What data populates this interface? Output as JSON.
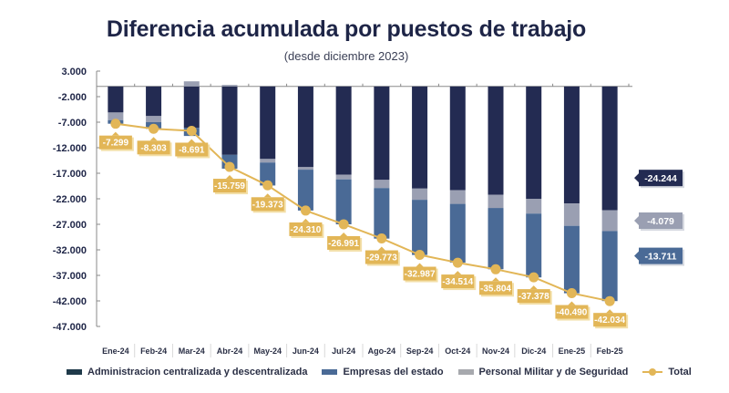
{
  "chart_data": {
    "type": "bar",
    "subtype": "stacked-bar-with-line",
    "title": "Diferencia acumulada por puestos de trabajo",
    "subtitle": "(desde diciembre 2023)",
    "xlabel": "",
    "ylabel": "",
    "ylim": [
      -47000,
      3000
    ],
    "yticks": [
      3000,
      -2000,
      -7000,
      -12000,
      -17000,
      -22000,
      -27000,
      -32000,
      -37000,
      -42000,
      -47000
    ],
    "ytick_labels": [
      "3.000",
      "-2.000",
      "-7.000",
      "-12.000",
      "-17.000",
      "-22.000",
      "-27.000",
      "-32.000",
      "-37.000",
      "-42.000",
      "-47.000"
    ],
    "grid": false,
    "legend_position": "bottom",
    "categories": [
      "Ene-24",
      "Feb-24",
      "Mar-24",
      "Abr-24",
      "May-24",
      "Jun-24",
      "Jul-24",
      "Ago-24",
      "Sep-24",
      "Oct-24",
      "Nov-24",
      "Dic-24",
      "Ene-25",
      "Feb-25"
    ],
    "series": [
      {
        "name": "Administracion centralizada y descentralizada",
        "color": "#232b52",
        "type": "bar",
        "values": [
          -5100,
          -5800,
          -8100,
          -13400,
          -14200,
          -15800,
          -17300,
          -18300,
          -20000,
          -20300,
          -21200,
          -22000,
          -22900,
          -24244
        ]
      },
      {
        "name": "Personal Militar y de Seguridad",
        "color": "#9a9fb2",
        "type": "bar",
        "values": [
          -1500,
          -1200,
          1000,
          300,
          -700,
          -500,
          -900,
          -1600,
          -2200,
          -2700,
          -2600,
          -2900,
          -4400,
          -4079
        ]
      },
      {
        "name": "Empresas del estado",
        "color": "#4a6a96",
        "type": "bar",
        "values": [
          -700,
          -1300,
          -1600,
          -2700,
          -4500,
          -8000,
          -8800,
          -9900,
          -10800,
          -11500,
          -12000,
          -12500,
          -13200,
          -13711
        ]
      },
      {
        "name": "Total",
        "color": "#e2b657",
        "type": "line",
        "values": [
          -7299,
          -8303,
          -8691,
          -15759,
          -19373,
          -24310,
          -26991,
          -29773,
          -32987,
          -34514,
          -35804,
          -37378,
          -40490,
          -42034
        ]
      }
    ],
    "data_labels": [
      "-7.299",
      "-8.303",
      "-8.691",
      "-15.759",
      "-19.373",
      "-24.310",
      "-26.991",
      "-29.773",
      "-32.987",
      "-34.514",
      "-35.804",
      "-37.378",
      "-40.490",
      "-42.034"
    ],
    "annotations": [
      {
        "text": "-24.244",
        "series": "Administracion centralizada y descentralizada",
        "color": "#232b52"
      },
      {
        "text": "-4.079",
        "series": "Personal Militar y de Seguridad",
        "color": "#9a9fb2"
      },
      {
        "text": "-13.711",
        "series": "Empresas del estado",
        "color": "#4a6a96"
      }
    ]
  },
  "legend": [
    {
      "label": "Administracion centralizada y descentralizada",
      "color": "#1f3a4a"
    },
    {
      "label": "Empresas del estado",
      "color": "#4a6a96"
    },
    {
      "label": "Personal Militar y de Seguridad",
      "color": "#a7a9ae"
    },
    {
      "label": "Total",
      "color": "#e2b657"
    }
  ]
}
